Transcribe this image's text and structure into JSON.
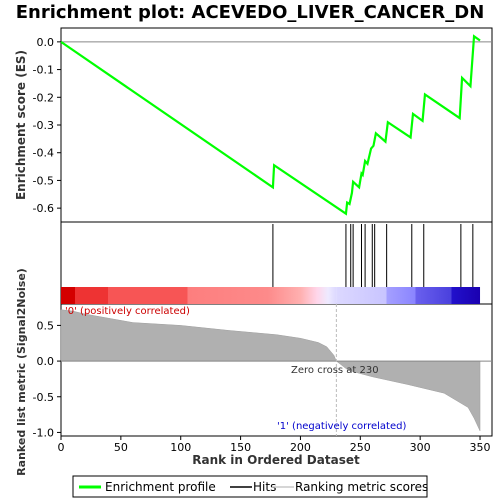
{
  "chart_data": {
    "type": "line",
    "title": "Enrichment plot: ACEVEDO_LIVER_CANCER_DN",
    "xlabel": "Rank in Ordered Dataset",
    "ylabel_top": "Enrichment score (ES)",
    "ylabel_bottom": "Ranked list metric (Signal2Noise)",
    "xlim": [
      0,
      360
    ],
    "top_ylim": [
      -0.65,
      0.05
    ],
    "top_yticks": [
      "0.0",
      "-0.1",
      "-0.2",
      "-0.3",
      "-0.4",
      "-0.5",
      "-0.6"
    ],
    "top_ytick_values": [
      0.0,
      -0.1,
      -0.2,
      -0.3,
      -0.4,
      -0.5,
      -0.6
    ],
    "bottom_ylim": [
      -1.05,
      0.8
    ],
    "bottom_yticks": [
      "0.5",
      "0.0",
      "-0.5",
      "-1.0"
    ],
    "bottom_ytick_values": [
      0.5,
      0.0,
      -0.5,
      -1.0
    ],
    "xticks": [
      "0",
      "50",
      "100",
      "150",
      "200",
      "250",
      "300",
      "350"
    ],
    "xtick_values": [
      0,
      50,
      100,
      150,
      200,
      250,
      300,
      350
    ],
    "series": [
      {
        "name": "Enrichment profile",
        "color": "#00ff00",
        "x": [
          0,
          177,
          178,
          238,
          239,
          241,
          243,
          244,
          249,
          251,
          252,
          254,
          256,
          259,
          261,
          263,
          271,
          273,
          292,
          294,
          302,
          304,
          333,
          335,
          342,
          345,
          350
        ],
        "y": [
          0.0,
          -0.525,
          -0.445,
          -0.62,
          -0.58,
          -0.585,
          -0.545,
          -0.505,
          -0.525,
          -0.475,
          -0.48,
          -0.43,
          -0.44,
          -0.385,
          -0.375,
          -0.33,
          -0.36,
          -0.29,
          -0.345,
          -0.26,
          -0.285,
          -0.19,
          -0.275,
          -0.13,
          -0.16,
          0.02,
          0.005
        ]
      }
    ],
    "hits": [
      177,
      238,
      242,
      244,
      251,
      254,
      260,
      262,
      272,
      293,
      303,
      334,
      344
    ],
    "metric_curve": {
      "x": [
        0,
        10,
        20,
        40,
        60,
        100,
        140,
        180,
        200,
        215,
        222,
        228,
        230,
        240,
        260,
        290,
        320,
        330,
        340,
        345,
        350
      ],
      "y": [
        0.72,
        0.7,
        0.66,
        0.6,
        0.54,
        0.5,
        0.43,
        0.37,
        0.32,
        0.26,
        0.2,
        0.08,
        0.0,
        -0.13,
        -0.22,
        -0.33,
        -0.45,
        -0.55,
        -0.65,
        -0.8,
        -0.98
      ]
    },
    "zero_cross": 230,
    "annotations": {
      "positive": "'0' (positively correlated)",
      "negative": "'1' (negatively correlated)",
      "zero_cross": "Zero cross at 230"
    },
    "colors": {
      "profile": "#00ff00",
      "positive_label": "#cc0000",
      "negative_label": "#0000cc",
      "metric_fill": "#b0b0b0"
    },
    "legend": {
      "placement": "bottom",
      "items": [
        "Enrichment profile",
        "Hits",
        "Ranking metric scores"
      ]
    }
  }
}
